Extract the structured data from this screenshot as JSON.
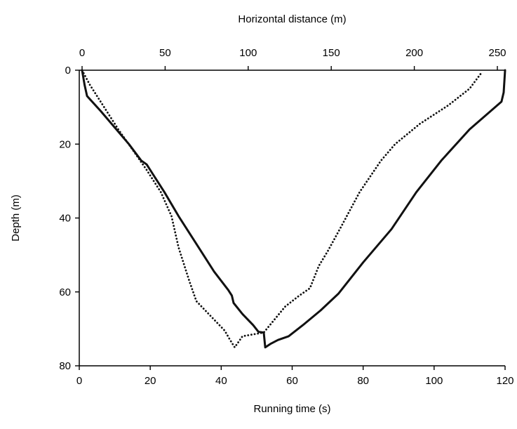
{
  "chart_data": {
    "type": "line",
    "title": "",
    "xlabel": "Running time (s)",
    "ylabel": "Depth (m)",
    "x2label": "Horizontal distance (m)",
    "xlim": [
      0,
      120
    ],
    "x2lim": [
      0,
      258
    ],
    "ylim": [
      0,
      80
    ],
    "y_inverted": true,
    "grid": false,
    "legend": "none",
    "xticks": [
      0,
      20,
      40,
      60,
      80,
      100,
      120
    ],
    "x2ticks": [
      0,
      50,
      100,
      150,
      200,
      250
    ],
    "yticks": [
      0,
      20,
      40,
      60,
      80
    ],
    "series": [
      {
        "style": "solid",
        "color": "#111111",
        "points": [
          [
            0.8,
            0
          ],
          [
            1.5,
            4
          ],
          [
            2.2,
            7
          ],
          [
            6,
            11
          ],
          [
            10,
            15.5
          ],
          [
            14,
            20
          ],
          [
            17.5,
            24.5
          ],
          [
            19,
            25.5
          ],
          [
            21,
            28.5
          ],
          [
            24,
            33
          ],
          [
            28,
            39.5
          ],
          [
            33,
            47
          ],
          [
            38,
            54.5
          ],
          [
            42,
            59.5
          ],
          [
            43,
            61
          ],
          [
            43.5,
            63
          ],
          [
            46,
            66
          ],
          [
            49,
            69
          ],
          [
            50.5,
            70.8
          ],
          [
            52,
            71
          ],
          [
            52.4,
            75
          ],
          [
            54,
            74
          ],
          [
            56,
            73
          ],
          [
            59,
            72
          ],
          [
            63,
            69
          ],
          [
            68,
            65
          ],
          [
            73,
            60.5
          ],
          [
            80,
            52
          ],
          [
            88,
            43
          ],
          [
            95,
            33
          ],
          [
            102,
            24.5
          ],
          [
            110,
            16
          ],
          [
            116,
            11
          ],
          [
            119,
            8.5
          ],
          [
            119.6,
            6
          ],
          [
            120,
            0
          ]
        ]
      },
      {
        "style": "dotted",
        "color": "#111111",
        "points": [
          [
            0.8,
            0
          ],
          [
            3,
            4
          ],
          [
            7,
            10
          ],
          [
            11,
            16
          ],
          [
            15,
            21.5
          ],
          [
            19,
            27
          ],
          [
            23,
            33
          ],
          [
            26,
            39.5
          ],
          [
            28,
            48
          ],
          [
            31,
            57
          ],
          [
            33,
            62.5
          ],
          [
            37,
            66.5
          ],
          [
            41,
            70.5
          ],
          [
            42.5,
            73
          ],
          [
            43.8,
            75
          ],
          [
            46,
            72
          ],
          [
            52,
            71
          ],
          [
            55,
            67.5
          ],
          [
            58,
            64
          ],
          [
            62,
            61
          ],
          [
            65,
            59
          ],
          [
            67.5,
            53
          ],
          [
            70,
            49
          ],
          [
            74,
            42
          ],
          [
            79,
            33
          ],
          [
            85,
            24.5
          ],
          [
            89,
            20
          ],
          [
            96,
            14.5
          ],
          [
            104,
            9.5
          ],
          [
            110,
            5
          ],
          [
            113.5,
            0.5
          ]
        ]
      }
    ]
  }
}
